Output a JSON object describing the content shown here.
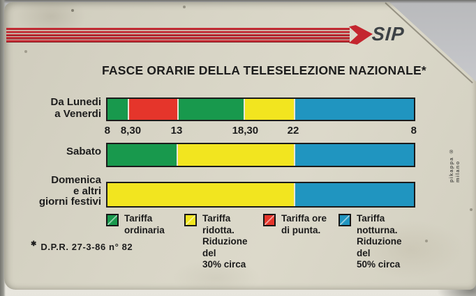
{
  "card": {
    "brand": "SIP",
    "title": "FASCE ORARIE DELLA TELESELEZIONE NAZIONALE*",
    "footnote_mark": "✱",
    "footnote": "D.P.R. 27-3-86 n° 82",
    "side_text": "pikappa ® milano",
    "colors": {
      "ordinaria": "#18994d",
      "ridotta": "#f2e51f",
      "punta": "#e5352b",
      "notturna": "#2095c0",
      "stripe_red": "#c62a33",
      "card_bg": "#d8d5c6"
    }
  },
  "chart_data": {
    "type": "bar",
    "subtype": "stacked-timeline",
    "title": "FASCE ORARIE DELLA TELESELEZIONE NAZIONALE*",
    "x_axis": "hours of day, 8:00 through 8:00 next day",
    "ticks": [
      {
        "label": "8",
        "pos_pct": 0.4
      },
      {
        "label": "8,30",
        "pos_pct": 8.0
      },
      {
        "label": "13",
        "pos_pct": 22.8
      },
      {
        "label": "18,30",
        "pos_pct": 45.0
      },
      {
        "label": "22",
        "pos_pct": 60.5
      },
      {
        "label": "8",
        "pos_pct": 99.5
      }
    ],
    "rows": [
      {
        "label": "Da Lunedi\na Venerdi",
        "segments": [
          {
            "tariff": "ordinaria",
            "color": "ordinaria",
            "from": "8",
            "to": "8,30",
            "width_pct": 6.8
          },
          {
            "tariff": "punta",
            "color": "punta",
            "from": "8,30",
            "to": "13",
            "width_pct": 16.0
          },
          {
            "tariff": "ordinaria",
            "color": "ordinaria",
            "from": "13",
            "to": "18,30",
            "width_pct": 21.4
          },
          {
            "tariff": "ridotta",
            "color": "ridotta",
            "from": "18,30",
            "to": "22",
            "width_pct": 16.3
          },
          {
            "tariff": "notturna",
            "color": "notturna",
            "from": "22",
            "to": "8",
            "width_pct": 39.5
          }
        ]
      },
      {
        "label": "Sabato",
        "segments": [
          {
            "tariff": "ordinaria",
            "color": "ordinaria",
            "from": "8",
            "to": "13",
            "width_pct": 22.8
          },
          {
            "tariff": "ridotta",
            "color": "ridotta",
            "from": "13",
            "to": "22",
            "width_pct": 38.2
          },
          {
            "tariff": "notturna",
            "color": "notturna",
            "from": "22",
            "to": "8",
            "width_pct": 39.0
          }
        ]
      },
      {
        "label": "Domenica\ne altri\ngiorni festivi",
        "segments": [
          {
            "tariff": "ridotta",
            "color": "ridotta",
            "from": "8",
            "to": "22",
            "width_pct": 61.0
          },
          {
            "tariff": "notturna",
            "color": "notturna",
            "from": "22",
            "to": "8",
            "width_pct": 39.0
          }
        ]
      }
    ],
    "legend": [
      {
        "color": "ordinaria",
        "label": "Tariffa\nordinaria"
      },
      {
        "color": "ridotta",
        "label": "Tariffa\nridotta.\nRiduzione del\n30% circa"
      },
      {
        "color": "punta",
        "label": "Tariffa ore\ndi punta."
      },
      {
        "color": "notturna",
        "label": "Tariffa\nnotturna.\nRiduzione del\n50% circa"
      }
    ],
    "legend_position": "bottom",
    "grid": false
  }
}
